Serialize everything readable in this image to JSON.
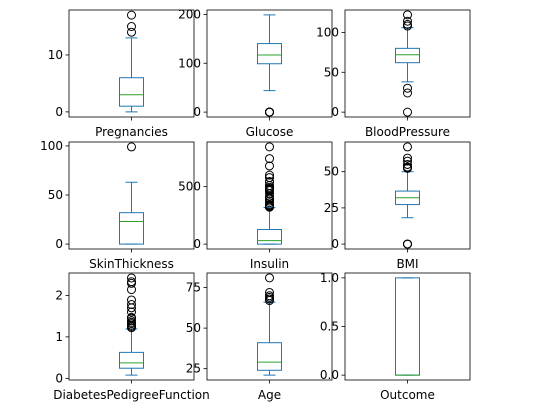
{
  "chart_data": [
    {
      "type": "box",
      "xlabel": "Pregnancies",
      "ylim": [
        -0.9,
        17.9
      ],
      "yticks": [
        0,
        10
      ],
      "stats": {
        "whislo": 0,
        "q1": 1,
        "med": 3,
        "q3": 6,
        "whishi": 13
      },
      "fliers": [
        14,
        15,
        17
      ]
    },
    {
      "type": "box",
      "xlabel": "Glucose",
      "ylim": [
        -10,
        209
      ],
      "yticks": [
        0,
        100,
        200
      ],
      "stats": {
        "whislo": 44,
        "q1": 99,
        "med": 117,
        "q3": 140.25,
        "whishi": 199
      },
      "fliers": [
        0,
        0,
        0,
        0,
        0
      ]
    },
    {
      "type": "box",
      "xlabel": "BloodPressure",
      "ylim": [
        -6.1,
        128.1
      ],
      "yticks": [
        0,
        50,
        100
      ],
      "stats": {
        "whislo": 38,
        "q1": 62,
        "med": 72,
        "q3": 80,
        "whishi": 106
      },
      "fliers": [
        0,
        24,
        30,
        108,
        110,
        114,
        122
      ]
    },
    {
      "type": "box",
      "xlabel": "SkinThickness",
      "ylim": [
        -5,
        104
      ],
      "yticks": [
        0,
        50,
        100
      ],
      "stats": {
        "whislo": 0,
        "q1": 0,
        "med": 23,
        "q3": 32,
        "whishi": 63
      },
      "fliers": [
        99
      ]
    },
    {
      "type": "box",
      "xlabel": "Insulin",
      "ylim": [
        -42.3,
        888.3
      ],
      "yticks": [
        0,
        500
      ],
      "stats": {
        "whislo": 0,
        "q1": 0,
        "med": 30.5,
        "q3": 127.25,
        "whishi": 318
      },
      "fliers": [
        321,
        326,
        330,
        335,
        342,
        360,
        375,
        392,
        400,
        415,
        440,
        465,
        474,
        480,
        485,
        495,
        510,
        540,
        545,
        579,
        600,
        680,
        744,
        846
      ]
    },
    {
      "type": "box",
      "xlabel": "BMI",
      "ylim": [
        -3.4,
        70.5
      ],
      "yticks": [
        0,
        25,
        50
      ],
      "stats": {
        "whislo": 18.2,
        "q1": 27.3,
        "med": 32,
        "q3": 36.6,
        "whishi": 50
      },
      "fliers": [
        0,
        0,
        0,
        52.3,
        52.9,
        53.2,
        55,
        57.3,
        59.4,
        67.1
      ]
    },
    {
      "type": "box",
      "xlabel": "DiabetesPedigreeFunction",
      "ylim": [
        -0.04,
        2.54
      ],
      "yticks": [
        0,
        1,
        2
      ],
      "stats": {
        "whislo": 0.078,
        "q1": 0.244,
        "med": 0.3725,
        "q3": 0.626,
        "whishi": 1.191
      },
      "fliers": [
        1.22,
        1.25,
        1.28,
        1.32,
        1.35,
        1.39,
        1.45,
        1.47,
        1.6,
        1.7,
        1.78,
        1.89,
        2.14,
        2.29,
        2.33,
        2.42
      ]
    },
    {
      "type": "box",
      "xlabel": "Age",
      "ylim": [
        18,
        84
      ],
      "yticks": [
        25,
        50,
        75
      ],
      "stats": {
        "whislo": 21,
        "q1": 24,
        "med": 29,
        "q3": 41,
        "whishi": 66
      },
      "fliers": [
        67,
        68,
        69,
        70,
        72,
        81
      ]
    },
    {
      "type": "box",
      "xlabel": "Outcome",
      "ylim": [
        -0.05,
        1.05
      ],
      "yticks": [
        0.0,
        0.5,
        1.0
      ],
      "stats": {
        "whislo": 0,
        "q1": 0,
        "med": 0,
        "q3": 1,
        "whishi": 1
      },
      "fliers": []
    }
  ],
  "style": {
    "box_color": "#1f77b4",
    "median_color": "#2ca02c",
    "flier_color": "#000000"
  }
}
